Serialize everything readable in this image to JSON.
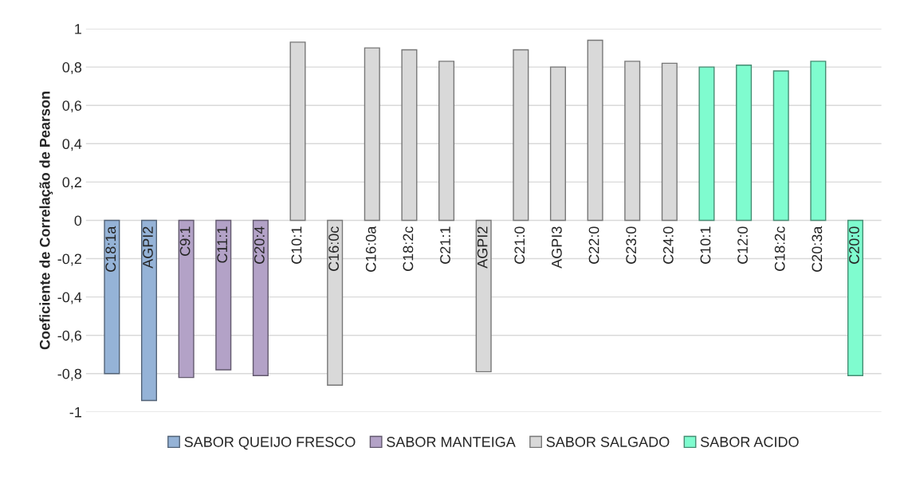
{
  "chart_data": {
    "type": "bar",
    "ylabel": "Coeficiente de Correlação de Pearson",
    "categories": [
      "C18:1a",
      "AGPI2",
      "C9:1",
      "C11:1",
      "C20:4",
      "C10:1",
      "C16:0c",
      "C16:0a",
      "C18:2c",
      "C21:1",
      "AGPI2",
      "C21:0",
      "AGPI3",
      "C22:0",
      "C23:0",
      "C24:0",
      "C10:1",
      "C12:0",
      "C18:2c",
      "C20:3a",
      "C20:0"
    ],
    "series": [
      {
        "name": "SABOR QUEIJO FRESCO",
        "color": "#95b3d7",
        "values": [
          -0.8,
          -0.94,
          null,
          null,
          null,
          null,
          null,
          null,
          null,
          null,
          null,
          null,
          null,
          null,
          null,
          null,
          null,
          null,
          null,
          null,
          null
        ]
      },
      {
        "name": "SABOR MANTEIGA",
        "color": "#b3a2c7",
        "values": [
          null,
          null,
          -0.82,
          -0.78,
          -0.81,
          null,
          null,
          null,
          null,
          null,
          null,
          null,
          null,
          null,
          null,
          null,
          null,
          null,
          null,
          null,
          null
        ]
      },
      {
        "name": "SABOR SALGADO",
        "color": "#d9d9d9",
        "values": [
          null,
          null,
          null,
          null,
          null,
          0.93,
          -0.86,
          0.9,
          0.89,
          0.83,
          -0.79,
          0.89,
          0.8,
          0.94,
          0.83,
          0.82,
          null,
          null,
          null,
          null,
          null
        ]
      },
      {
        "name": "SABOR ACIDO",
        "color": "#7ffccf",
        "values": [
          null,
          null,
          null,
          null,
          null,
          null,
          null,
          null,
          null,
          null,
          null,
          null,
          null,
          null,
          null,
          null,
          0.8,
          0.81,
          0.78,
          0.83,
          -0.81
        ]
      }
    ],
    "ylim": [
      -1,
      1
    ],
    "yticks": [
      {
        "value": -1,
        "label": "-1"
      },
      {
        "value": -0.8,
        "label": "-0,8"
      },
      {
        "value": -0.6,
        "label": "-0,6"
      },
      {
        "value": -0.4,
        "label": "-0,4"
      },
      {
        "value": -0.2,
        "label": "-0,2"
      },
      0,
      {
        "value": 0.2,
        "label": "0,2"
      },
      {
        "value": 0.4,
        "label": "0,4"
      },
      {
        "value": 0.6,
        "label": "0,6"
      },
      {
        "value": 0.8,
        "label": "0,8"
      },
      1
    ],
    "grid": "y",
    "legend": "bottom"
  }
}
